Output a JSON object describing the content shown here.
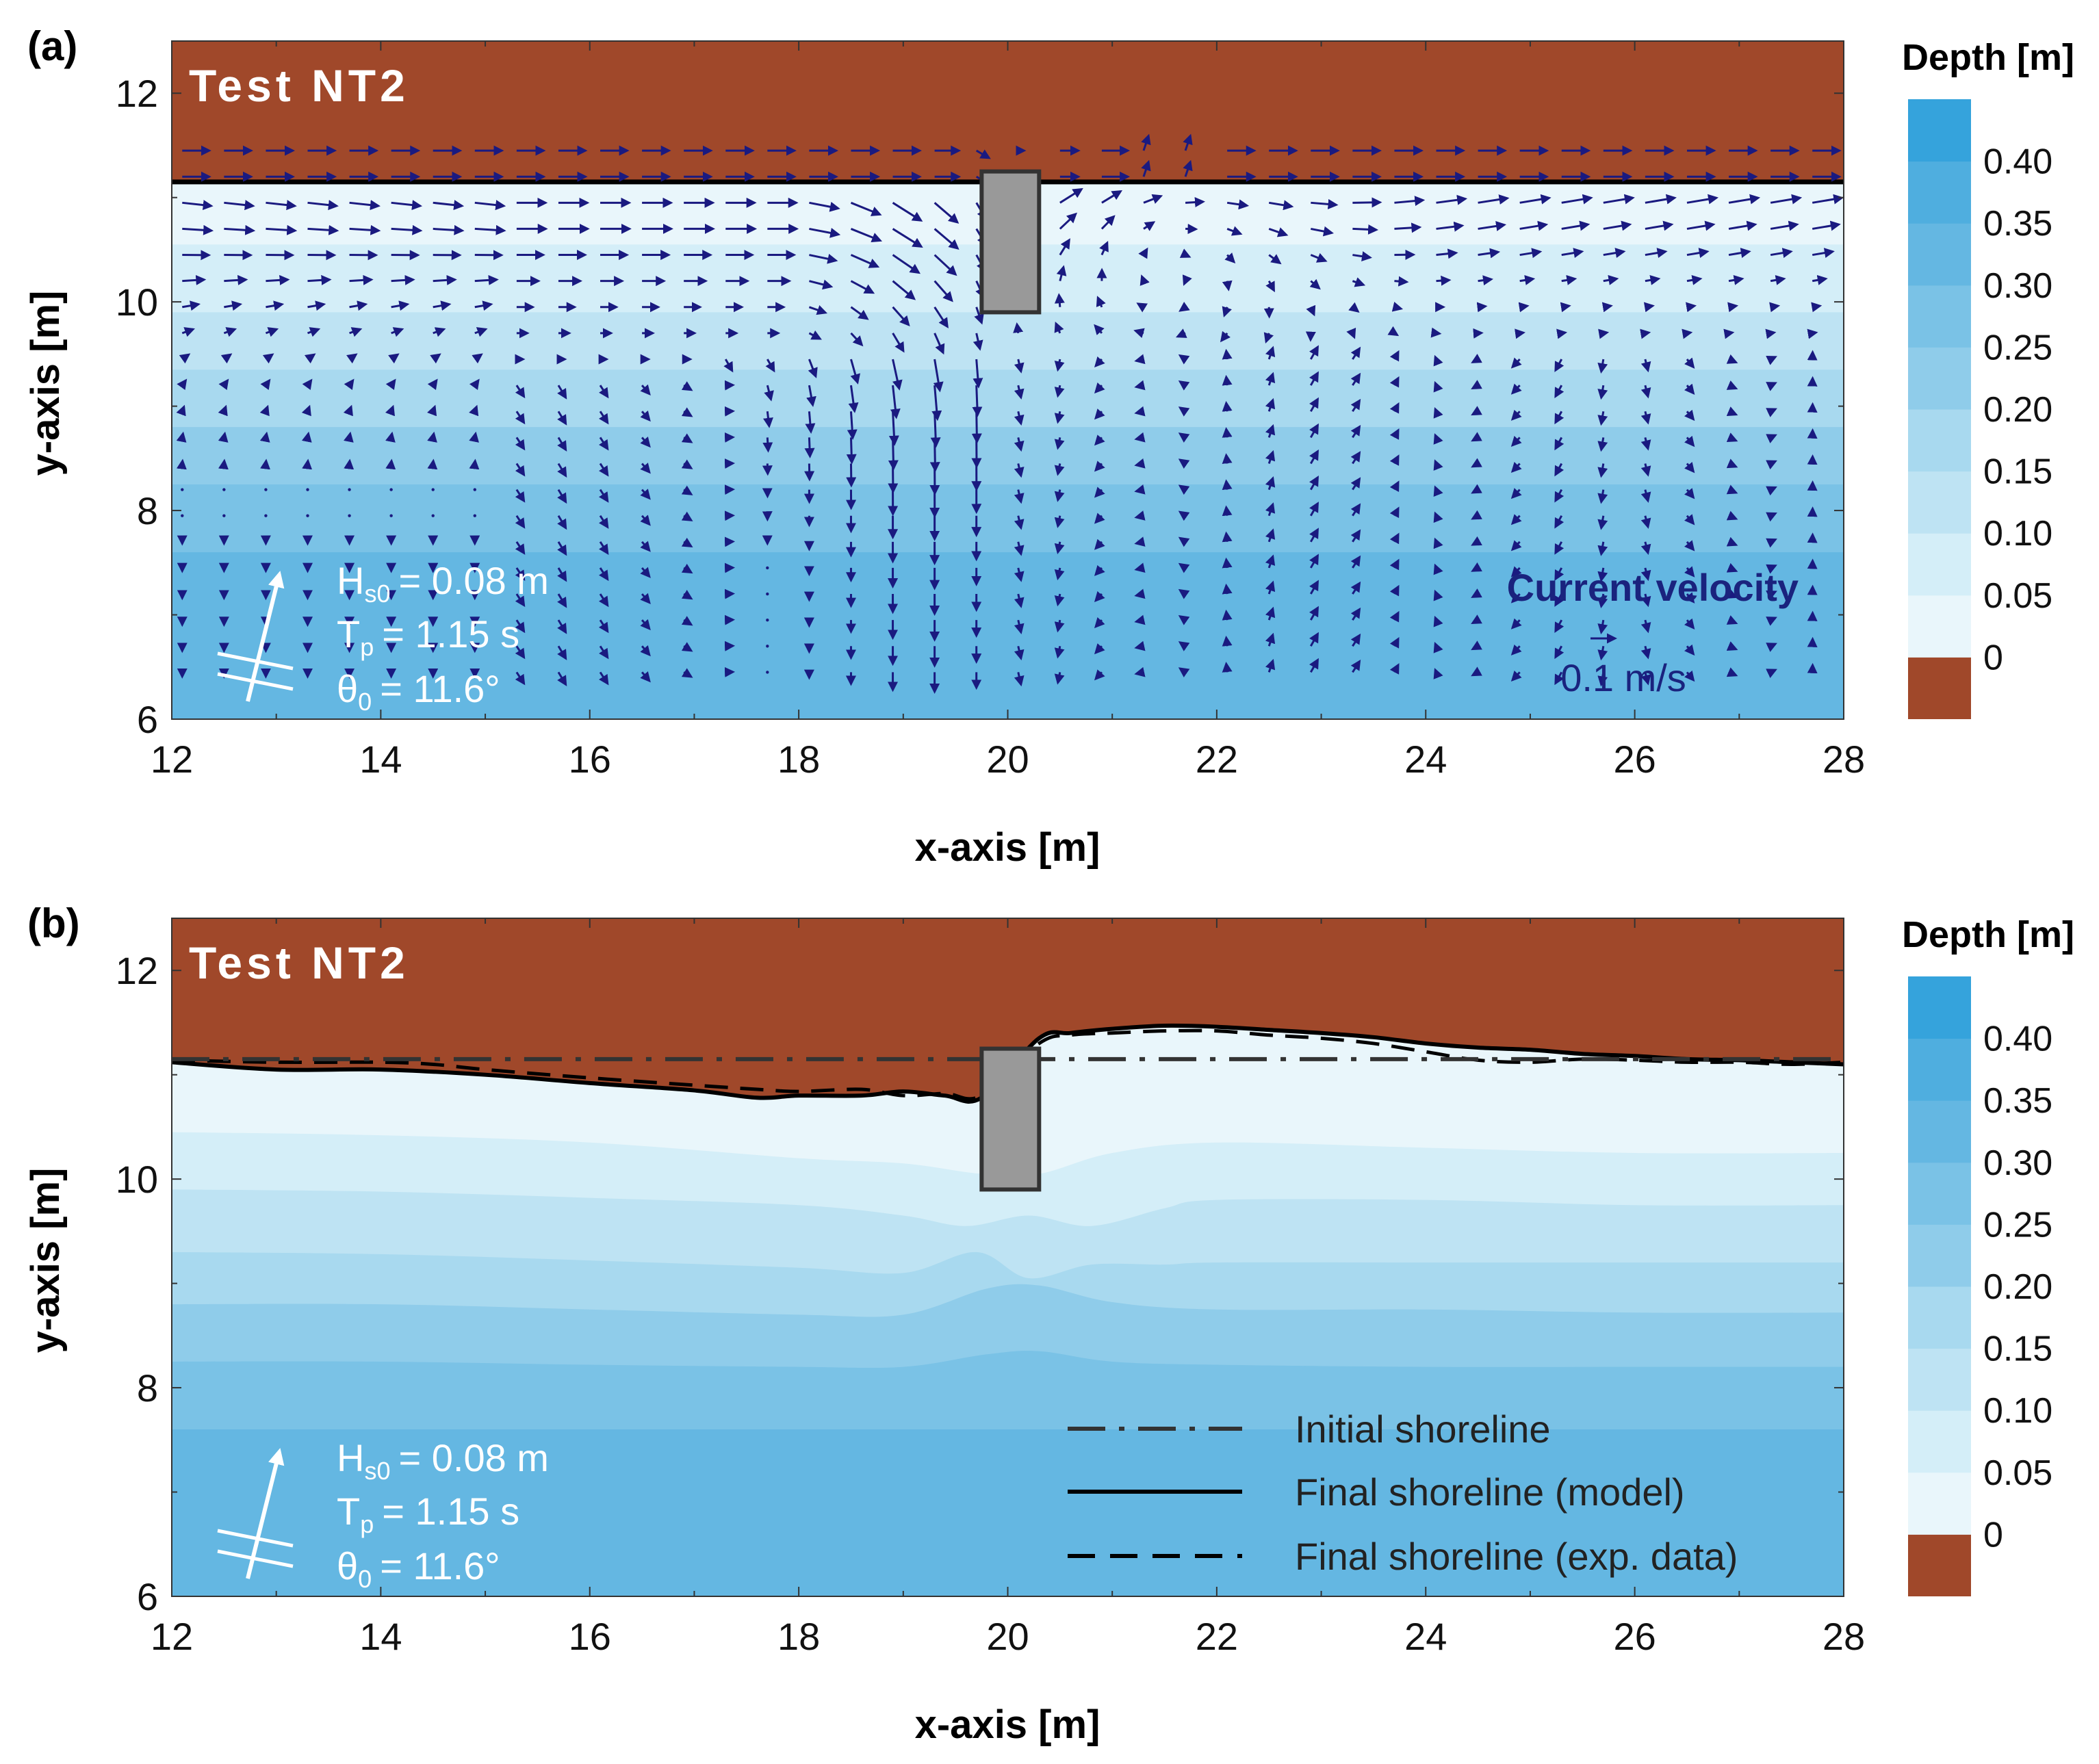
{
  "colors": {
    "land": "#A0482A",
    "depth_bands": [
      "#E9F6FB",
      "#D4EEF8",
      "#BEE3F3",
      "#A8D9EF",
      "#8FCCEA",
      "#7AC2E6",
      "#64B7E2",
      "#4FAEDF",
      "#35A3DC"
    ],
    "arrow": "#1A1A80",
    "structure_fill": "#999999",
    "structure_edge": "#333333",
    "white_text": "#FFFFFF",
    "velocity_text": "#1A237E"
  },
  "chart_data": [
    {
      "panel_label": "(a)",
      "title": "Test NT2",
      "type": "heatmap",
      "overlay": "quiver",
      "xlabel": "x-axis [m]",
      "ylabel": "y-axis [m]",
      "xlim": [
        12,
        28
      ],
      "ylim": [
        6,
        12.5
      ],
      "xticks": [
        12,
        14,
        16,
        18,
        20,
        22,
        24,
        26,
        28
      ],
      "yticks": [
        6,
        8,
        10,
        12
      ],
      "colorbar": {
        "title": "Depth [m]",
        "levels": [
          0,
          0.05,
          0.1,
          0.15,
          0.2,
          0.25,
          0.3,
          0.35,
          0.4
        ],
        "tick_labels": [
          "0",
          "0.05",
          "0.10",
          "0.15",
          "0.20",
          "0.25",
          "0.30",
          "0.35",
          "0.40"
        ],
        "land_color_below_zero": true
      },
      "shoreline_y": 11.15,
      "structure": {
        "x": [
          19.75,
          20.3
        ],
        "y": [
          9.9,
          11.25
        ]
      },
      "depth_band_tops_y": [
        11.15,
        10.55,
        9.9,
        9.35,
        8.8,
        8.25,
        7.6
      ],
      "wave_conditions": {
        "line1": "= 0.08 m",
        "line2": "= 1.15 s",
        "line3": "= 11.6°"
      },
      "velocity_legend": {
        "title": "Current velocity",
        "scale_label": "0.1 m/s",
        "scale_value": 0.1
      }
    },
    {
      "panel_label": "(b)",
      "title": "Test NT2",
      "type": "heatmap",
      "xlabel": "x-axis [m]",
      "ylabel": "y-axis [m]",
      "xlim": [
        12,
        28
      ],
      "ylim": [
        6,
        12.5
      ],
      "xticks": [
        12,
        14,
        16,
        18,
        20,
        22,
        24,
        26,
        28
      ],
      "yticks": [
        6,
        8,
        10,
        12
      ],
      "colorbar": {
        "title": "Depth [m]",
        "levels": [
          0,
          0.05,
          0.1,
          0.15,
          0.2,
          0.25,
          0.3,
          0.35,
          0.4
        ],
        "tick_labels": [
          "0",
          "0.05",
          "0.10",
          "0.15",
          "0.20",
          "0.25",
          "0.30",
          "0.35",
          "0.40"
        ],
        "land_color_below_zero": true
      },
      "structure": {
        "x": [
          19.75,
          20.3
        ],
        "y": [
          9.9,
          11.25
        ]
      },
      "wave_conditions": {
        "line1": "= 0.08 m",
        "line2": "= 1.15 s",
        "line3": "= 11.6°"
      },
      "series": [
        {
          "name": "Initial shoreline",
          "style": "dashdot",
          "x": [
            12,
            28
          ],
          "y": [
            11.15,
            11.15
          ]
        },
        {
          "name": "Final shoreline (model)",
          "style": "solid",
          "x": [
            12,
            13,
            14,
            15,
            16,
            17,
            17.6,
            18,
            18.6,
            19,
            19.4,
            19.75,
            20.3,
            20.6,
            21,
            21.5,
            22,
            22.5,
            23,
            23.5,
            24,
            24.5,
            25,
            25.5,
            26,
            26.5,
            27,
            27.5,
            28
          ],
          "y": [
            11.12,
            11.05,
            11.05,
            11.0,
            10.92,
            10.85,
            10.78,
            10.8,
            10.8,
            10.84,
            10.8,
            10.78,
            11.35,
            11.4,
            11.44,
            11.47,
            11.46,
            11.43,
            11.4,
            11.36,
            11.3,
            11.26,
            11.24,
            11.2,
            11.18,
            11.15,
            11.14,
            11.12,
            11.1
          ]
        },
        {
          "name": "Final shoreline (exp. data)",
          "style": "dashed",
          "x": [
            12,
            13,
            14,
            14.5,
            15,
            16,
            17,
            17.6,
            18,
            18.6,
            19,
            19.4,
            19.75,
            20.3,
            20.6,
            21,
            21.5,
            22,
            22.5,
            23,
            23.5,
            24,
            24.5,
            25,
            25.5,
            26,
            26.5,
            27,
            27.5,
            28
          ],
          "y": [
            11.14,
            11.12,
            11.12,
            11.1,
            11.05,
            10.97,
            10.9,
            10.86,
            10.84,
            10.86,
            10.8,
            10.82,
            10.8,
            11.3,
            11.38,
            11.4,
            11.42,
            11.42,
            11.38,
            11.35,
            11.3,
            11.22,
            11.14,
            11.12,
            11.15,
            11.14,
            11.12,
            11.12,
            11.1,
            11.12
          ]
        }
      ],
      "depth_band_tops": [
        {
          "x": [
            12,
            14,
            16,
            18,
            19,
            19.75,
            20.3,
            21,
            22,
            24,
            26,
            28
          ],
          "y": [
            10.45,
            10.42,
            10.35,
            10.2,
            10.15,
            10.05,
            10.05,
            10.25,
            10.35,
            10.3,
            10.25,
            10.25
          ]
        },
        {
          "x": [
            12,
            14,
            16,
            18,
            19,
            19.6,
            20.2,
            20.8,
            21.5,
            22,
            24,
            26,
            28
          ],
          "y": [
            9.9,
            9.88,
            9.82,
            9.75,
            9.65,
            9.55,
            9.65,
            9.55,
            9.72,
            9.8,
            9.8,
            9.75,
            9.75
          ]
        },
        {
          "x": [
            12,
            14,
            16,
            18,
            19,
            19.7,
            20.2,
            20.8,
            21.5,
            22,
            24,
            26,
            28
          ],
          "y": [
            9.3,
            9.28,
            9.22,
            9.15,
            9.1,
            9.3,
            9.05,
            9.18,
            9.18,
            9.2,
            9.2,
            9.2,
            9.2
          ]
        },
        {
          "x": [
            12,
            14,
            16,
            18,
            19,
            19.8,
            20.3,
            21,
            22,
            24,
            26,
            28
          ],
          "y": [
            8.8,
            8.8,
            8.75,
            8.7,
            8.7,
            8.95,
            8.98,
            8.82,
            8.75,
            8.75,
            8.72,
            8.72
          ]
        },
        {
          "x": [
            12,
            14,
            16,
            18,
            19,
            19.8,
            20.3,
            21,
            22,
            24,
            26,
            28
          ],
          "y": [
            8.25,
            8.25,
            8.22,
            8.2,
            8.2,
            8.32,
            8.35,
            8.25,
            8.22,
            8.2,
            8.2,
            8.2
          ]
        },
        {
          "x": [
            12,
            28
          ],
          "y": [
            7.6,
            7.6
          ]
        }
      ],
      "legend": {
        "location": "lower-right",
        "entries": [
          "Initial shoreline",
          "Final shoreline (model)",
          "Final shoreline (exp. data)"
        ]
      }
    }
  ]
}
